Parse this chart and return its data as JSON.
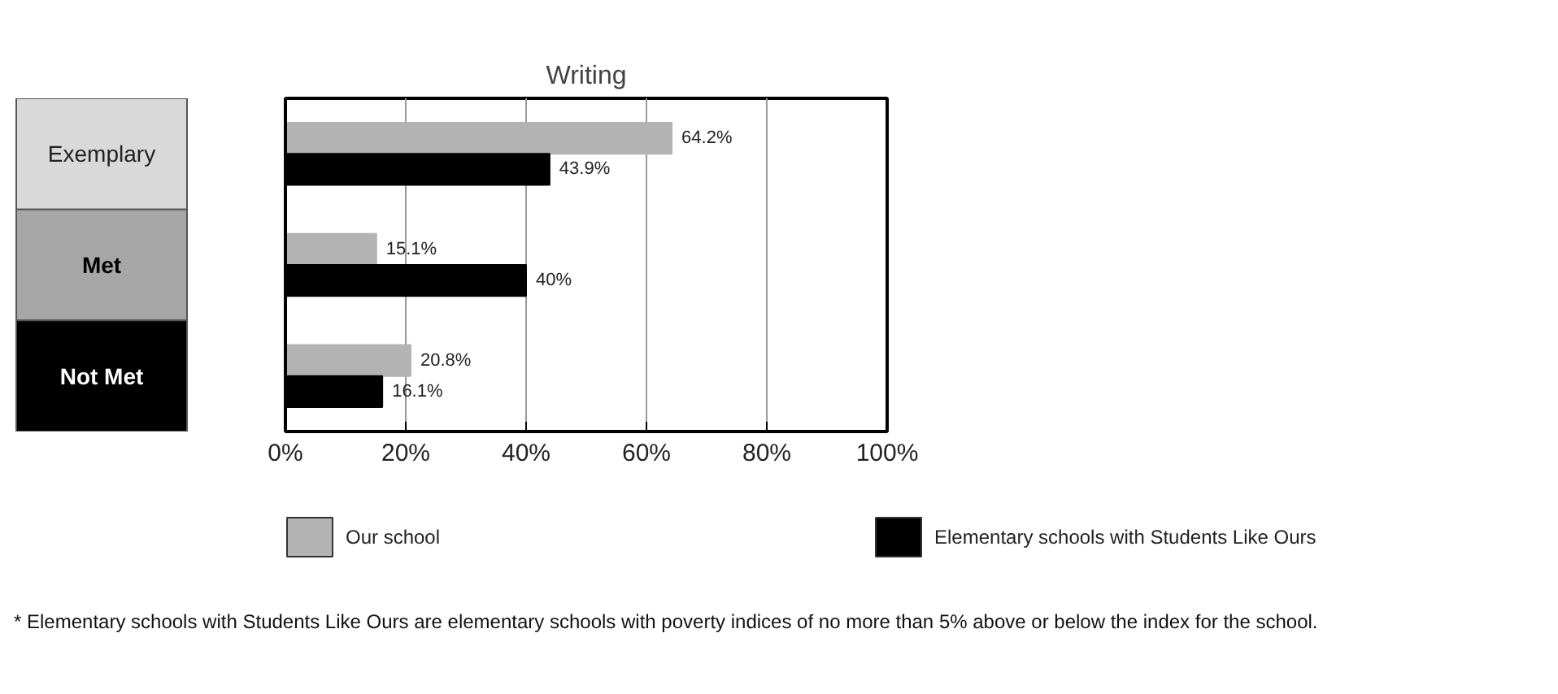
{
  "chart_data": {
    "type": "bar",
    "orientation": "horizontal",
    "title": "Writing",
    "categories": [
      "Exemplary",
      "Met",
      "Not Met"
    ],
    "series": [
      {
        "name": "Our school",
        "color": "#b3b3b3",
        "values": [
          64.2,
          15.1,
          20.8
        ],
        "value_labels": [
          "64.2%",
          "15.1%",
          "20.8%"
        ]
      },
      {
        "name": "Elementary schools with Students Like Ours",
        "color": "#000000",
        "values": [
          43.9,
          40,
          16.1
        ],
        "value_labels": [
          "43.9%",
          "40%",
          "16.1%"
        ]
      }
    ],
    "xlim": [
      0,
      100
    ],
    "xticks": [
      {
        "value": 0,
        "label": "0%"
      },
      {
        "value": 20,
        "label": "20%"
      },
      {
        "value": 40,
        "label": "40%"
      },
      {
        "value": 60,
        "label": "60%"
      },
      {
        "value": 80,
        "label": "80%"
      },
      {
        "value": 100,
        "label": "100%"
      }
    ],
    "grid": "x",
    "legend": "bottom",
    "annotations": [
      "*  Elementary schools with Students Like Ours are elementary schools with poverty indices of no more than 5% above or below the index for the school."
    ]
  }
}
